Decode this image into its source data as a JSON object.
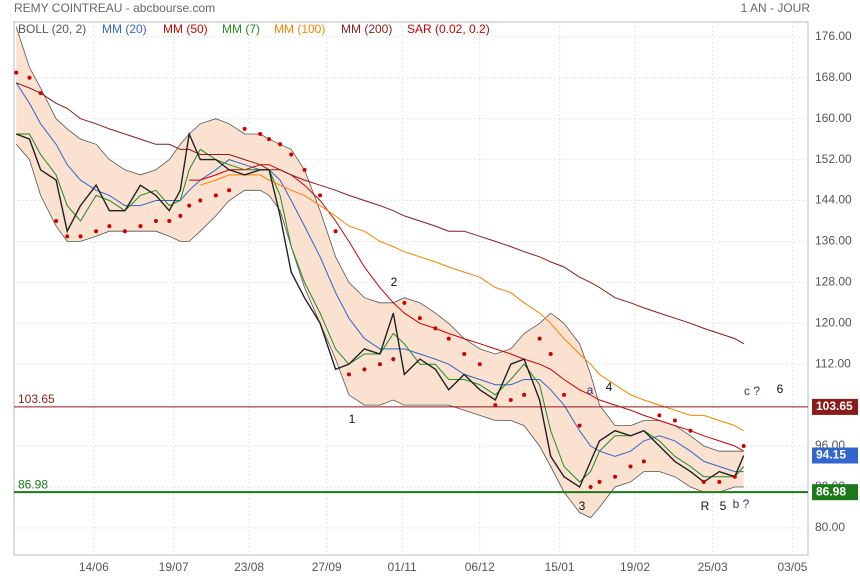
{
  "chart_data": {
    "type": "line",
    "title": "REMY COINTREAU - abcbourse.com",
    "period": "1 AN - JOUR",
    "x": [
      0,
      6,
      11,
      18,
      23,
      29,
      36,
      42,
      49,
      56,
      63,
      69,
      74,
      78,
      83,
      90,
      96,
      103,
      110,
      114,
      119,
      124,
      130,
      137,
      144,
      150,
      157,
      164,
      170,
      175,
      182,
      189,
      195,
      202,
      209,
      216,
      223,
      229,
      236,
      241,
      247,
      254,
      259,
      263,
      270,
      277,
      283,
      290,
      297,
      304,
      310,
      317,
      324,
      328
    ],
    "xlim": [
      -1,
      357
    ],
    "xticks": [
      {
        "value": 35,
        "label": "14/06"
      },
      {
        "value": 71,
        "label": "19/07"
      },
      {
        "value": 105,
        "label": "23/08"
      },
      {
        "value": 140,
        "label": "27/09"
      },
      {
        "value": 174,
        "label": "01/11"
      },
      {
        "value": 209,
        "label": "06/12"
      },
      {
        "value": 245,
        "label": "15/01"
      },
      {
        "value": 279,
        "label": "19/02"
      },
      {
        "value": 314,
        "label": "25/03"
      },
      {
        "value": 350,
        "label": "03/05"
      }
    ],
    "ylim": [
      74.7,
      178.9
    ],
    "yticks": [
      {
        "value": 80,
        "label": "80.00"
      },
      {
        "value": 88,
        "label": "88.00"
      },
      {
        "value": 96,
        "label": "96.00"
      },
      {
        "value": 104,
        "label": "104.00"
      },
      {
        "value": 112,
        "label": "112.00"
      },
      {
        "value": 120,
        "label": "120.00"
      },
      {
        "value": 128,
        "label": "128.00"
      },
      {
        "value": 136,
        "label": "136.00"
      },
      {
        "value": 144,
        "label": "144.00"
      },
      {
        "value": 152,
        "label": "152.00"
      },
      {
        "value": 160,
        "label": "160.00"
      },
      {
        "value": 168,
        "label": "168.00"
      },
      {
        "value": 176,
        "label": "176.00"
      }
    ],
    "grid": true,
    "price": {
      "color": "#222222",
      "values": [
        157,
        156,
        150,
        148,
        138,
        143,
        147,
        142,
        142,
        147,
        145,
        142,
        146,
        157,
        152,
        152,
        150,
        149,
        150,
        150,
        141,
        130,
        125,
        120,
        111,
        112,
        115,
        114,
        122,
        110,
        113,
        111,
        107,
        110,
        107,
        105,
        112,
        113,
        105,
        94,
        90,
        88,
        93,
        97,
        99,
        98,
        99,
        96,
        93,
        91,
        89,
        91,
        90,
        94.15
      ]
    },
    "last_price": {
      "value": 94.15,
      "label": "94.15",
      "color": "#3366cc"
    },
    "series": [
      {
        "name": "BOLL (20, 2)",
        "color": "#555555",
        "fill": "#fbe1d0",
        "upper": [
          178,
          170,
          166,
          160,
          158,
          156,
          155,
          152,
          150,
          149,
          150,
          152,
          155,
          157,
          159,
          160,
          159,
          157,
          157,
          156,
          155,
          154,
          150,
          142,
          133,
          128,
          125,
          124,
          124,
          125,
          124,
          122,
          120,
          117,
          115,
          114,
          115,
          118,
          120,
          122,
          120,
          116,
          110,
          104,
          100,
          100,
          101,
          101,
          100,
          98,
          96,
          95,
          95,
          95
        ],
        "lower": [
          155,
          152,
          145,
          139,
          136,
          136,
          137,
          138,
          138,
          138,
          138,
          137,
          136,
          136,
          138,
          141,
          144,
          146,
          146,
          145,
          142,
          135,
          127,
          120,
          113,
          106,
          104,
          104,
          105,
          104,
          104,
          104,
          104,
          103,
          102,
          101,
          101,
          100,
          96,
          92,
          87,
          83,
          82,
          84,
          88,
          89,
          91,
          91,
          90,
          88,
          87,
          87,
          88,
          88
        ]
      },
      {
        "name": "MM (20)",
        "color": "#3366cc",
        "values": [
          167,
          163,
          159,
          155,
          151,
          148,
          146,
          145,
          143,
          143,
          144,
          144,
          144,
          146,
          148,
          150,
          152,
          151,
          150,
          150,
          148,
          144,
          139,
          133,
          126,
          121,
          117,
          115,
          115,
          115,
          114,
          113,
          112,
          110,
          109,
          108,
          108,
          109,
          109,
          107,
          104,
          99,
          96,
          95,
          94,
          95,
          97,
          98,
          97,
          95,
          93,
          92,
          91,
          91
        ]
      },
      {
        "name": "MM (50)",
        "color": "#cc0000",
        "values": [
          null,
          null,
          null,
          null,
          null,
          null,
          null,
          null,
          null,
          null,
          null,
          null,
          null,
          148,
          148,
          149,
          150,
          150,
          151,
          151,
          150,
          149,
          147,
          144,
          140,
          136,
          131,
          127,
          124,
          122,
          120,
          119,
          118,
          117,
          116,
          115,
          114,
          113,
          112,
          111,
          109,
          107,
          106,
          105,
          104,
          103,
          102,
          101,
          100,
          99,
          98,
          97,
          96,
          95
        ]
      },
      {
        "name": "MM (7)",
        "color": "#228b22",
        "values": [
          157,
          157,
          153,
          149,
          143,
          140,
          145,
          144,
          142,
          145,
          146,
          143,
          144,
          150,
          154,
          152,
          151,
          150,
          150,
          150,
          145,
          135,
          128,
          122,
          115,
          112,
          114,
          114,
          118,
          116,
          112,
          112,
          109,
          109,
          108,
          106,
          109,
          112,
          108,
          99,
          92,
          89,
          91,
          95,
          98,
          98,
          99,
          97,
          94,
          92,
          90,
          90,
          90,
          92
        ]
      },
      {
        "name": "MM (100)",
        "color": "#ff8000",
        "values": [
          null,
          null,
          null,
          null,
          null,
          null,
          null,
          null,
          null,
          null,
          null,
          null,
          null,
          null,
          147,
          148,
          149,
          149,
          149,
          148,
          147,
          146,
          145,
          143,
          141,
          139,
          138,
          136,
          135,
          134,
          133,
          132,
          131,
          130,
          129,
          127,
          126,
          124,
          122,
          120,
          117,
          114,
          112,
          110,
          108,
          106,
          105,
          104,
          103,
          102,
          102,
          101,
          100,
          99
        ]
      },
      {
        "name": "MM (200)",
        "color": "#8b1a1a",
        "values": [
          167,
          166,
          165,
          163,
          162,
          160,
          159,
          158,
          157,
          156,
          155,
          155,
          154,
          154,
          153,
          153,
          153,
          152,
          151,
          150,
          150,
          149,
          148,
          147,
          146,
          145,
          144,
          143,
          142,
          141,
          140,
          139,
          138,
          138,
          137,
          136,
          135,
          134,
          133,
          132,
          131,
          129,
          128,
          127,
          125,
          124,
          123,
          122,
          121,
          120,
          119,
          118,
          117,
          116
        ]
      },
      {
        "name": "SAR (0.02, 0.2)",
        "color": "#cc0000",
        "style": "dots",
        "values": [
          169,
          168,
          165,
          140,
          137,
          137,
          138,
          139,
          138,
          139,
          140,
          140,
          141,
          143,
          144,
          145,
          146,
          158,
          157,
          156,
          155,
          153,
          150,
          145,
          138,
          110,
          111,
          112,
          113,
          124,
          121,
          119,
          117,
          114,
          112,
          104,
          105,
          106,
          117,
          114,
          106,
          100,
          88,
          89,
          90,
          92,
          93,
          102,
          101,
          99,
          89,
          89,
          90,
          96
        ]
      }
    ],
    "hlines": [
      {
        "value": 103.65,
        "label": "103.65",
        "color": "#8b1a1a"
      },
      {
        "value": 86.98,
        "label": "86.98",
        "color": "#1a7a1a"
      }
    ],
    "annotations": [
      {
        "text": "1",
        "color": "#111"
      },
      {
        "text": "2",
        "color": "#111"
      },
      {
        "text": "3",
        "color": "#111"
      },
      {
        "text": "4",
        "color": "#111"
      },
      {
        "text": "a",
        "color": "#33337a"
      },
      {
        "text": "c ?",
        "color": "#33337a"
      },
      {
        "text": "6",
        "color": "#111"
      },
      {
        "text": "R",
        "color": "#111"
      },
      {
        "text": "5",
        "color": "#111"
      },
      {
        "text": "b ?",
        "color": "#33337a"
      }
    ]
  }
}
